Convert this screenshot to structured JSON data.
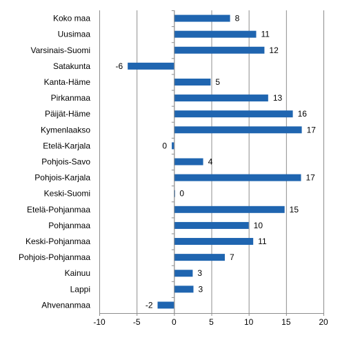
{
  "chart_data": {
    "type": "bar",
    "orientation": "horizontal",
    "title": "",
    "xlabel": "",
    "ylabel": "",
    "xlim": [
      -10,
      20
    ],
    "x_ticks": [
      -10,
      -5,
      0,
      5,
      10,
      15,
      20
    ],
    "x_tick_labels": [
      "-10",
      "-5",
      "0",
      "5",
      "10",
      "15",
      "20"
    ],
    "grid": "vertical",
    "legend": "none",
    "bar_color": "#1f65b0",
    "categories": [
      "Koko maa",
      "Uusimaa",
      "Varsinais-Suomi",
      "Satakunta",
      "Kanta-Häme",
      "Pirkanmaa",
      "Päijät-Häme",
      "Kymenlaakso",
      "Etelä-Karjala",
      "Pohjois-Savo",
      "Pohjois-Karjala",
      "Keski-Suomi",
      "Etelä-Pohjanmaa",
      "Pohjanmaa",
      "Keski-Pohjanmaa",
      "Pohjois-Pohjanmaa",
      "Kainuu",
      "Lappi",
      "Ahvenanmaa"
    ],
    "values": [
      7.5,
      11,
      12.1,
      -6.2,
      4.9,
      12.6,
      15.9,
      17.1,
      -0.3,
      3.9,
      17,
      0.1,
      14.8,
      10,
      10.6,
      6.8,
      2.5,
      2.6,
      -2.2
    ],
    "data_labels": [
      "8",
      "11",
      "12",
      "-6",
      "5",
      "13",
      "16",
      "17",
      "0",
      "4",
      "17",
      "0",
      "15",
      "10",
      "11",
      "7",
      "3",
      "3",
      "-2"
    ]
  }
}
